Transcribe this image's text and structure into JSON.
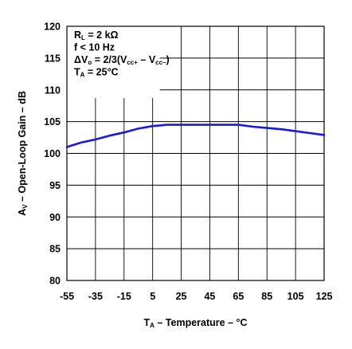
{
  "chart_data": {
    "type": "line",
    "xlabel": {
      "main": "T",
      "sub": "A",
      "rest": " – Temperature – °C"
    },
    "ylabel": {
      "main": "A",
      "sub": "V",
      "rest": " – Open-Loop Gain – dB"
    },
    "xlim": [
      -55,
      125
    ],
    "ylim": [
      80,
      120
    ],
    "xticks": [
      -55,
      -35,
      -15,
      5,
      25,
      45,
      65,
      85,
      105,
      125
    ],
    "yticks": [
      80,
      85,
      90,
      95,
      100,
      105,
      110,
      115,
      120
    ],
    "grid": true,
    "line_color": "#1a1adb",
    "annotations": [
      [
        {
          "t": "R"
        },
        {
          "t": "L",
          "sub": true
        },
        {
          "t": " = 2 kΩ"
        }
      ],
      [
        {
          "t": "f < 10 Hz"
        }
      ],
      [
        {
          "t": "ΔV"
        },
        {
          "t": "o",
          "sub": true
        },
        {
          "t": " = 2/3(V"
        },
        {
          "t": "cc+",
          "sub": true
        },
        {
          "t": " – V"
        },
        {
          "t": "cc–",
          "sub": true
        },
        {
          "t": ")"
        }
      ],
      [
        {
          "t": "T"
        },
        {
          "t": "A",
          "sub": true
        },
        {
          "t": " = 25°C"
        }
      ]
    ],
    "series": [
      {
        "x": [
          -55,
          -45,
          -35,
          -25,
          -15,
          -5,
          0,
          5,
          10,
          15,
          25,
          35,
          45,
          55,
          65,
          75,
          85,
          95,
          105,
          115,
          125
        ],
        "y": [
          101.0,
          101.7,
          102.2,
          102.8,
          103.3,
          103.9,
          104.1,
          104.3,
          104.4,
          104.5,
          104.5,
          104.5,
          104.5,
          104.5,
          104.5,
          104.2,
          104.0,
          103.8,
          103.5,
          103.2,
          102.9
        ]
      }
    ]
  }
}
